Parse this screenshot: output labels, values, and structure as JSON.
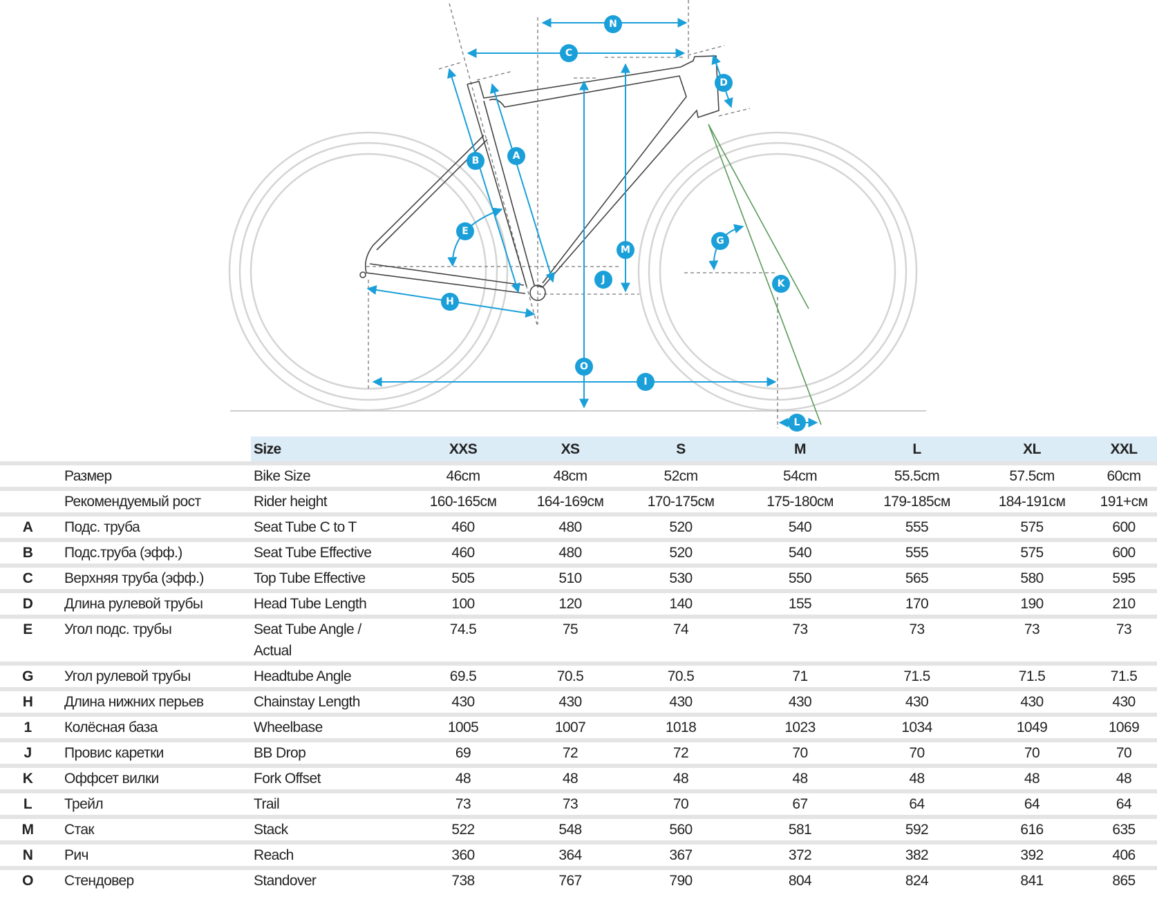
{
  "diagram": {
    "labels": {
      "N": "N",
      "C": "C",
      "D": "D",
      "B": "B",
      "A": "A",
      "E": "E",
      "M": "M",
      "J": "J",
      "G": "G",
      "K": "K",
      "H": "H",
      "O": "O",
      "I": "I",
      "L": "L"
    },
    "accent_color": "#1a9fd9",
    "fork_line_color": "#5a9a5a"
  },
  "table": {
    "header": {
      "size_label": "Size",
      "sizes": [
        "XXS",
        "XS",
        "S",
        "M",
        "L",
        "XL",
        "XXL"
      ]
    },
    "rows": [
      {
        "letter": "",
        "ru": "Размер",
        "en": "Bike Size",
        "values": [
          "46cm",
          "48cm",
          "52cm",
          "54cm",
          "55.5cm",
          "57.5cm",
          "60cm"
        ]
      },
      {
        "letter": "",
        "ru": "Рекомендуемый рост",
        "en": "Rider height",
        "values": [
          "160-165см",
          "164-169см",
          "170-175см",
          "175-180см",
          "179-185см",
          "184-191см",
          "191+см"
        ]
      },
      {
        "letter": "A",
        "ru": "Подс. труба",
        "en": "Seat Tube C to T",
        "values": [
          "460",
          "480",
          "520",
          "540",
          "555",
          "575",
          "600"
        ]
      },
      {
        "letter": "B",
        "ru": "Подс.труба (эфф.)",
        "en": "Seat Tube Effective",
        "values": [
          "460",
          "480",
          "520",
          "540",
          "555",
          "575",
          "600"
        ]
      },
      {
        "letter": "C",
        "ru": "Верхняя труба (эфф.)",
        "en": "Top Tube Effective",
        "values": [
          "505",
          "510",
          "530",
          "550",
          "565",
          "580",
          "595"
        ]
      },
      {
        "letter": "D",
        "ru": "Длина рулевой трубы",
        "en": "Head Tube Length",
        "values": [
          "100",
          "120",
          "140",
          "155",
          "170",
          "190",
          "210"
        ]
      },
      {
        "letter": "E",
        "ru": "Угол подс. трубы",
        "en": "Seat Tube Angle / Actual",
        "values": [
          "74.5",
          "75",
          "74",
          "73",
          "73",
          "73",
          "73"
        ]
      },
      {
        "letter": "G",
        "ru": "Угол рулевой трубы",
        "en": "Headtube Angle",
        "values": [
          "69.5",
          "70.5",
          "70.5",
          "71",
          "71.5",
          "71.5",
          "71.5"
        ]
      },
      {
        "letter": "H",
        "ru": "Длина нижних перьев",
        "en": "Chainstay Length",
        "values": [
          "430",
          "430",
          "430",
          "430",
          "430",
          "430",
          "430"
        ]
      },
      {
        "letter": "1",
        "ru": "Колёсная база",
        "en": "Wheelbase",
        "values": [
          "1005",
          "1007",
          "1018",
          "1023",
          "1034",
          "1049",
          "1069"
        ]
      },
      {
        "letter": "J",
        "ru": "Провис каретки",
        "en": "BB Drop",
        "values": [
          "69",
          "72",
          "72",
          "70",
          "70",
          "70",
          "70"
        ]
      },
      {
        "letter": "K",
        "ru": "Оффсет вилки",
        "en": "Fork Offset",
        "values": [
          "48",
          "48",
          "48",
          "48",
          "48",
          "48",
          "48"
        ]
      },
      {
        "letter": "L",
        "ru": "Трейл",
        "en": "Trail",
        "values": [
          "73",
          "73",
          "70",
          "67",
          "64",
          "64",
          "64"
        ]
      },
      {
        "letter": "M",
        "ru": "Стак",
        "en": "Stack",
        "values": [
          "522",
          "548",
          "560",
          "581",
          "592",
          "616",
          "635"
        ]
      },
      {
        "letter": "N",
        "ru": "Рич",
        "en": "Reach",
        "values": [
          "360",
          "364",
          "367",
          "372",
          "382",
          "392",
          "406"
        ]
      },
      {
        "letter": "O",
        "ru": "Стендовер",
        "en": "Standover",
        "values": [
          "738",
          "767",
          "790",
          "804",
          "824",
          "841",
          "865"
        ]
      }
    ]
  }
}
